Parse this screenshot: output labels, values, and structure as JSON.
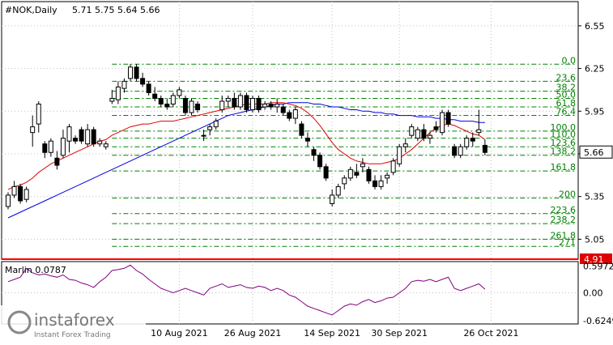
{
  "header": {
    "symbol_label": "#NOK,Daily",
    "ohlc_label": "5.71 5.75 5.64 5.66"
  },
  "indicator": {
    "label": "Marlin 0.0787",
    "upper_level_label": "0.5972",
    "zero_level_label": "0.00",
    "lower_level_label": "-0.6249"
  },
  "price_badges": {
    "last_price": "5.66",
    "support_price": "4.91"
  },
  "watermark": {
    "brand": "instaforex",
    "tagline": "Instant Forex Trading"
  },
  "colors": {
    "background": "#ffffff",
    "grid": "#c0c0c0",
    "candle": "#000000",
    "fibo": "#008000",
    "ma_fast": "#e00000",
    "ma_slow": "#0000e0",
    "oscillator": "#800080",
    "support_line": "#ff0000",
    "badge_bg": "#ffffff",
    "badge_support_bg": "#e00000"
  },
  "chart_data": [
    {
      "type": "candlestick",
      "title": "#NOK,Daily",
      "ylim": [
        4.91,
        6.72
      ],
      "y_ticks": [
        "6.55",
        "6.25",
        "5.95",
        "5.65",
        "5.35",
        "5.05"
      ],
      "x_ticks": [
        "10 Aug 2021",
        "26 Aug 2021",
        "14 Sep 2021",
        "30 Sep 2021",
        "26 Oct 2021"
      ],
      "x_tick_index": [
        28,
        40,
        53,
        64,
        79
      ],
      "candles": [
        [
          5.28,
          5.38,
          5.26,
          5.36
        ],
        [
          5.36,
          5.46,
          5.34,
          5.42
        ],
        [
          5.42,
          5.44,
          5.3,
          5.32
        ],
        [
          5.33,
          5.42,
          5.31,
          5.4
        ],
        [
          5.8,
          5.92,
          5.7,
          5.84
        ],
        [
          5.86,
          6.02,
          5.8,
          6.0
        ],
        [
          5.72,
          5.74,
          5.62,
          5.66
        ],
        [
          5.66,
          5.76,
          5.63,
          5.74
        ],
        [
          5.62,
          5.67,
          5.54,
          5.57
        ],
        [
          5.64,
          5.82,
          5.62,
          5.76
        ],
        [
          5.74,
          5.86,
          5.66,
          5.84
        ],
        [
          5.76,
          5.78,
          5.72,
          5.74
        ],
        [
          5.82,
          5.84,
          5.72,
          5.74
        ],
        [
          5.72,
          5.86,
          5.7,
          5.82
        ],
        [
          5.82,
          5.84,
          5.7,
          5.72
        ],
        [
          5.72,
          5.76,
          5.7,
          5.74
        ],
        [
          5.7,
          5.74,
          5.68,
          5.72
        ],
        [
          6.02,
          6.1,
          6.0,
          6.04
        ],
        [
          6.03,
          6.16,
          6.0,
          6.12
        ],
        [
          6.11,
          6.18,
          6.08,
          6.16
        ],
        [
          6.18,
          6.28,
          6.16,
          6.26
        ],
        [
          6.26,
          6.28,
          6.16,
          6.18
        ],
        [
          6.18,
          6.22,
          6.12,
          6.14
        ],
        [
          6.14,
          6.16,
          6.06,
          6.08
        ],
        [
          6.07,
          6.12,
          6.02,
          6.04
        ],
        [
          6.04,
          6.06,
          5.98,
          6.0
        ],
        [
          6.0,
          6.04,
          5.96,
          5.98
        ],
        [
          6.0,
          6.08,
          5.98,
          6.06
        ],
        [
          6.06,
          6.12,
          6.04,
          6.1
        ],
        [
          6.04,
          6.06,
          5.92,
          5.94
        ],
        [
          5.94,
          6.04,
          5.92,
          6.02
        ],
        [
          6.0,
          6.02,
          5.94,
          5.96
        ],
        [
          5.78,
          5.82,
          5.74,
          5.78
        ],
        [
          5.82,
          5.86,
          5.78,
          5.84
        ],
        [
          5.84,
          5.9,
          5.82,
          5.88
        ],
        [
          5.96,
          6.06,
          5.94,
          6.02
        ],
        [
          6.02,
          6.06,
          5.98,
          6.04
        ],
        [
          6.04,
          6.08,
          5.96,
          5.98
        ],
        [
          5.98,
          6.08,
          5.96,
          6.06
        ],
        [
          6.06,
          6.08,
          5.94,
          5.96
        ],
        [
          5.96,
          6.06,
          5.94,
          6.04
        ],
        [
          6.04,
          6.06,
          5.94,
          5.96
        ],
        [
          5.98,
          6.02,
          5.96,
          6.0
        ],
        [
          6.0,
          6.02,
          5.96,
          5.98
        ],
        [
          5.98,
          6.04,
          5.94,
          6.0
        ],
        [
          5.98,
          6.0,
          5.92,
          5.94
        ],
        [
          5.94,
          5.96,
          5.88,
          5.9
        ],
        [
          5.9,
          5.98,
          5.86,
          5.96
        ],
        [
          5.86,
          5.88,
          5.76,
          5.78
        ],
        [
          5.76,
          5.8,
          5.7,
          5.74
        ],
        [
          5.68,
          5.7,
          5.6,
          5.64
        ],
        [
          5.64,
          5.66,
          5.54,
          5.56
        ],
        [
          5.56,
          5.58,
          5.46,
          5.48
        ],
        [
          5.3,
          5.4,
          5.28,
          5.36
        ],
        [
          5.36,
          5.44,
          5.34,
          5.42
        ],
        [
          5.44,
          5.5,
          5.4,
          5.48
        ],
        [
          5.48,
          5.56,
          5.46,
          5.54
        ],
        [
          5.52,
          5.58,
          5.48,
          5.5
        ],
        [
          5.56,
          5.62,
          5.52,
          5.58
        ],
        [
          5.54,
          5.56,
          5.44,
          5.46
        ],
        [
          5.46,
          5.5,
          5.4,
          5.42
        ],
        [
          5.42,
          5.5,
          5.4,
          5.46
        ],
        [
          5.48,
          5.52,
          5.44,
          5.5
        ],
        [
          5.52,
          5.62,
          5.5,
          5.6
        ],
        [
          5.58,
          5.72,
          5.56,
          5.7
        ],
        [
          5.7,
          5.76,
          5.66,
          5.72
        ],
        [
          5.78,
          5.86,
          5.76,
          5.84
        ],
        [
          5.76,
          5.84,
          5.74,
          5.82
        ],
        [
          5.82,
          5.86,
          5.74,
          5.76
        ],
        [
          5.76,
          5.8,
          5.72,
          5.78
        ],
        [
          5.84,
          5.88,
          5.8,
          5.82
        ],
        [
          5.8,
          5.96,
          5.78,
          5.94
        ],
        [
          5.94,
          5.96,
          5.84,
          5.86
        ],
        [
          5.7,
          5.72,
          5.62,
          5.64
        ],
        [
          5.64,
          5.72,
          5.62,
          5.7
        ],
        [
          5.7,
          5.78,
          5.68,
          5.76
        ],
        [
          5.76,
          5.8,
          5.7,
          5.74
        ],
        [
          5.8,
          5.96,
          5.78,
          5.82
        ],
        [
          5.71,
          5.75,
          5.64,
          5.66
        ]
      ],
      "ma_fast": [
        5.4,
        5.42,
        5.43,
        5.45,
        5.48,
        5.52,
        5.55,
        5.58,
        5.6,
        5.62,
        5.64,
        5.66,
        5.68,
        5.7,
        5.72,
        5.74,
        5.75,
        5.78,
        5.8,
        5.82,
        5.84,
        5.85,
        5.86,
        5.86,
        5.87,
        5.88,
        5.88,
        5.88,
        5.89,
        5.9,
        5.91,
        5.92,
        5.93,
        5.94,
        5.95,
        5.96,
        5.97,
        5.98,
        5.99,
        6.0,
        6.0,
        6.0,
        6.0,
        6.01,
        6.01,
        6.01,
        6.0,
        5.99,
        5.97,
        5.94,
        5.9,
        5.85,
        5.79,
        5.73,
        5.68,
        5.65,
        5.62,
        5.6,
        5.59,
        5.58,
        5.58,
        5.58,
        5.59,
        5.6,
        5.62,
        5.65,
        5.68,
        5.72,
        5.76,
        5.8,
        5.83,
        5.85,
        5.86,
        5.85,
        5.83,
        5.81,
        5.79,
        5.78,
        5.75
      ],
      "ma_slow": [
        5.2,
        5.22,
        5.24,
        5.26,
        5.28,
        5.3,
        5.32,
        5.34,
        5.36,
        5.38,
        5.4,
        5.42,
        5.44,
        5.46,
        5.48,
        5.5,
        5.52,
        5.54,
        5.56,
        5.58,
        5.6,
        5.62,
        5.64,
        5.66,
        5.68,
        5.7,
        5.72,
        5.74,
        5.76,
        5.78,
        5.8,
        5.82,
        5.84,
        5.86,
        5.88,
        5.9,
        5.92,
        5.93,
        5.94,
        5.95,
        5.96,
        5.97,
        5.98,
        5.99,
        6.0,
        6.0,
        6.01,
        6.01,
        6.01,
        6.01,
        6.0,
        6.0,
        5.99,
        5.98,
        5.98,
        5.97,
        5.96,
        5.96,
        5.95,
        5.95,
        5.94,
        5.94,
        5.93,
        5.93,
        5.92,
        5.92,
        5.92,
        5.91,
        5.91,
        5.91,
        5.9,
        5.9,
        5.89,
        5.89,
        5.88,
        5.88,
        5.88,
        5.87,
        5.87
      ],
      "fibo": {
        "levels": [
          {
            "label": "0.0",
            "price": 6.28
          },
          {
            "label": "23.6",
            "price": 6.16
          },
          {
            "label": "38.2",
            "price": 6.09
          },
          {
            "label": "50.0",
            "price": 6.04
          },
          {
            "label": "61.8",
            "price": 5.98
          },
          {
            "label": "76.4",
            "price": 5.92
          },
          {
            "label": "100.0",
            "price": 5.81
          },
          {
            "label": "110.0",
            "price": 5.76
          },
          {
            "label": "123.6",
            "price": 5.7
          },
          {
            "label": "138.2",
            "price": 5.64
          },
          {
            "label": "161.8",
            "price": 5.53
          },
          {
            "label": "200",
            "price": 5.34
          },
          {
            "label": "223.6",
            "price": 5.23
          },
          {
            "label": "238.2",
            "price": 5.16
          },
          {
            "label": "261.8",
            "price": 5.05
          },
          {
            "label": "271",
            "price": 5.0
          }
        ],
        "start_index": 17
      },
      "support_level": 4.91
    },
    {
      "type": "line",
      "title": "Marlin 0.0787",
      "ylim": [
        -0.7,
        0.7
      ],
      "y_ticks": [
        "0.5972",
        "0.00",
        "-0.6249"
      ],
      "values": [
        0.25,
        0.3,
        0.35,
        0.55,
        0.45,
        0.4,
        0.42,
        0.38,
        0.35,
        0.4,
        0.3,
        0.28,
        0.22,
        0.18,
        0.12,
        0.25,
        0.35,
        0.5,
        0.52,
        0.55,
        0.62,
        0.5,
        0.42,
        0.3,
        0.2,
        0.1,
        0.05,
        0.0,
        0.05,
        0.1,
        0.05,
        0.0,
        -0.05,
        0.1,
        0.15,
        0.2,
        0.12,
        0.15,
        0.18,
        0.12,
        0.1,
        0.15,
        0.12,
        0.05,
        0.1,
        0.05,
        -0.05,
        -0.1,
        -0.2,
        -0.3,
        -0.35,
        -0.4,
        -0.45,
        -0.5,
        -0.4,
        -0.3,
        -0.25,
        -0.28,
        -0.2,
        -0.15,
        -0.22,
        -0.18,
        -0.12,
        -0.1,
        0.0,
        0.1,
        0.25,
        0.28,
        0.26,
        0.3,
        0.25,
        0.3,
        0.35,
        0.1,
        0.05,
        0.1,
        0.15,
        0.2,
        0.08
      ]
    }
  ]
}
